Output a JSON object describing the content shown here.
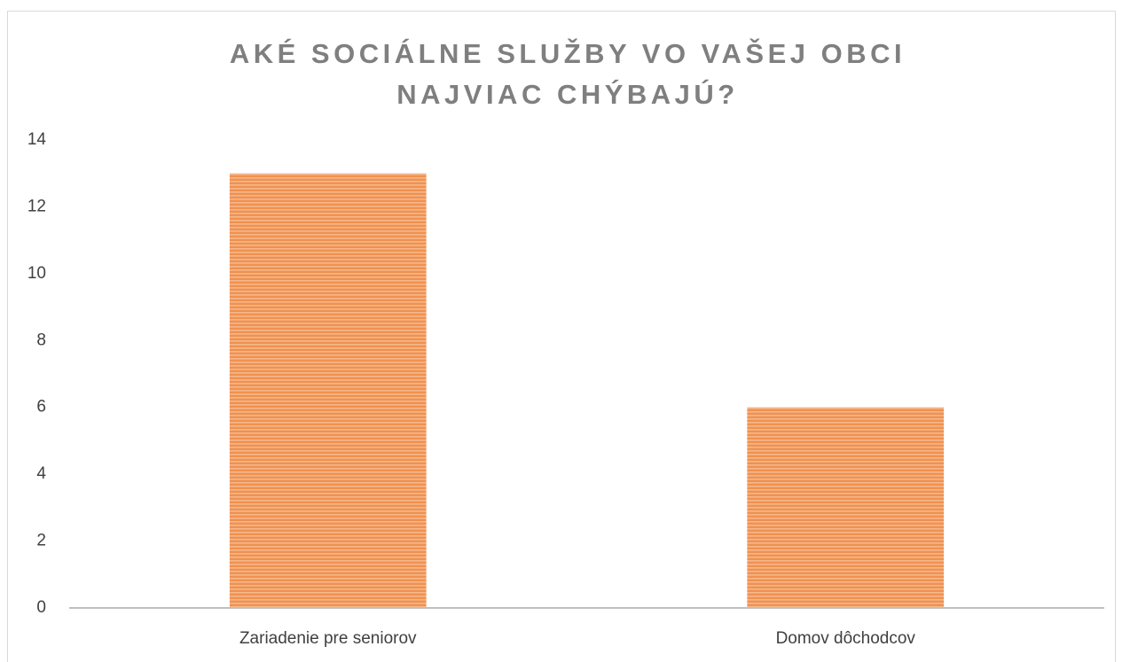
{
  "chart_data": {
    "type": "bar",
    "title": "AKÉ SOCIÁLNE SLUŽBY VO VAŠEJ OBCI NAJVIAC CHÝBAJÚ?",
    "categories": [
      "Zariadenie pre seniorov",
      "Domov dôchodcov"
    ],
    "values": [
      13,
      6
    ],
    "color": "#f0914f",
    "ylim": [
      0,
      14
    ],
    "yticks": [
      0,
      2,
      4,
      6,
      8,
      10,
      12,
      14
    ],
    "grid": false
  }
}
